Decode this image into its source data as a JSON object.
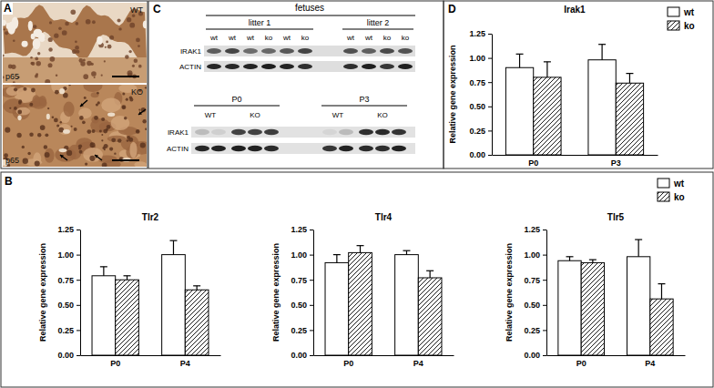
{
  "chart_data": [
    {
      "type": "bar",
      "title": "Irak1",
      "ylabel": "Relative gene expression",
      "categories": [
        "P0",
        "P3"
      ],
      "series": [
        {
          "name": "wt",
          "color": "#ffffff",
          "values": [
            0.9,
            0.98
          ],
          "errors": [
            0.14,
            0.16
          ]
        },
        {
          "name": "ko",
          "color": "#000000",
          "values": [
            0.8,
            0.74
          ],
          "errors": [
            0.16,
            0.1
          ]
        }
      ],
      "ylim": [
        0,
        1.25
      ],
      "yticks": [
        {
          "value": 0,
          "label": "0.00"
        },
        0.25,
        {
          "value": 0.5,
          "label": "0.50"
        },
        0.75,
        {
          "value": 1,
          "label": "1.00"
        },
        1.25
      ],
      "legend": "top-right"
    },
    {
      "type": "bar",
      "title": "Tlr2",
      "ylabel": "Relative gene expression",
      "categories": [
        "P0",
        "P4"
      ],
      "series": [
        {
          "name": "wt",
          "color": "#ffffff",
          "values": [
            0.79,
            1.0
          ],
          "errors": [
            0.09,
            0.14
          ]
        },
        {
          "name": "ko",
          "color": "#000000",
          "values": [
            0.75,
            0.65
          ],
          "errors": [
            0.04,
            0.04
          ]
        }
      ],
      "ylim": [
        0,
        1.25
      ],
      "yticks": [
        {
          "value": 0,
          "label": "0.00"
        },
        0.25,
        {
          "value": 0.5,
          "label": "0.50"
        },
        0.75,
        {
          "value": 1,
          "label": "1.00"
        },
        1.25
      ]
    },
    {
      "type": "bar",
      "title": "Tlr4",
      "ylabel": "Relative gene expression",
      "categories": [
        "P0",
        "P4"
      ],
      "series": [
        {
          "name": "wt",
          "color": "#ffffff",
          "values": [
            0.92,
            1.0
          ],
          "errors": [
            0.08,
            0.04
          ]
        },
        {
          "name": "ko",
          "color": "#000000",
          "values": [
            1.02,
            0.77
          ],
          "errors": [
            0.07,
            0.07
          ]
        }
      ],
      "ylim": [
        0,
        1.25
      ],
      "yticks": [
        {
          "value": 0,
          "label": "0.00"
        },
        0.25,
        {
          "value": 0.5,
          "label": "0.50"
        },
        0.75,
        {
          "value": 1,
          "label": "1.00"
        },
        1.25
      ]
    },
    {
      "type": "bar",
      "title": "Tlr5",
      "ylabel": "Relative gene expression",
      "categories": [
        "P0",
        "P4"
      ],
      "series": [
        {
          "name": "wt",
          "color": "#ffffff",
          "values": [
            0.94,
            0.98
          ],
          "errors": [
            0.04,
            0.17
          ]
        },
        {
          "name": "ko",
          "color": "#000000",
          "values": [
            0.92,
            0.56
          ],
          "errors": [
            0.03,
            0.15
          ]
        }
      ],
      "ylim": [
        0,
        1.25
      ],
      "yticks": [
        {
          "value": 0,
          "label": "0.00"
        },
        0.25,
        {
          "value": 0.5,
          "label": "0.50"
        },
        0.75,
        {
          "value": 1,
          "label": "1.00"
        },
        1.25
      ],
      "legend": "top-right"
    }
  ],
  "figure": {
    "panel_labels": [
      "A",
      "B",
      "C",
      "D"
    ],
    "histology": {
      "images": [
        {
          "genotype": "WT",
          "stain": "p65"
        },
        {
          "genotype": "KO",
          "stain": "p65"
        }
      ]
    },
    "blots": [
      {
        "header": "fetuses",
        "groups": [
          {
            "label": "litter 1",
            "lanes": [
              "wt",
              "wt",
              "wt",
              "ko",
              "wt",
              "ko"
            ]
          },
          {
            "label": "litter 2",
            "lanes": [
              "wt",
              "wt",
              "ko",
              "ko"
            ]
          }
        ],
        "rows": [
          "IRAK1",
          "ACTIN"
        ]
      },
      {
        "groups": [
          {
            "label": "P0",
            "subgroups": [
              "WT",
              "KO"
            ]
          },
          {
            "label": "P3",
            "subgroups": [
              "WT",
              "KO"
            ]
          }
        ],
        "rows": [
          "IRAK1",
          "ACTIN"
        ]
      }
    ]
  }
}
